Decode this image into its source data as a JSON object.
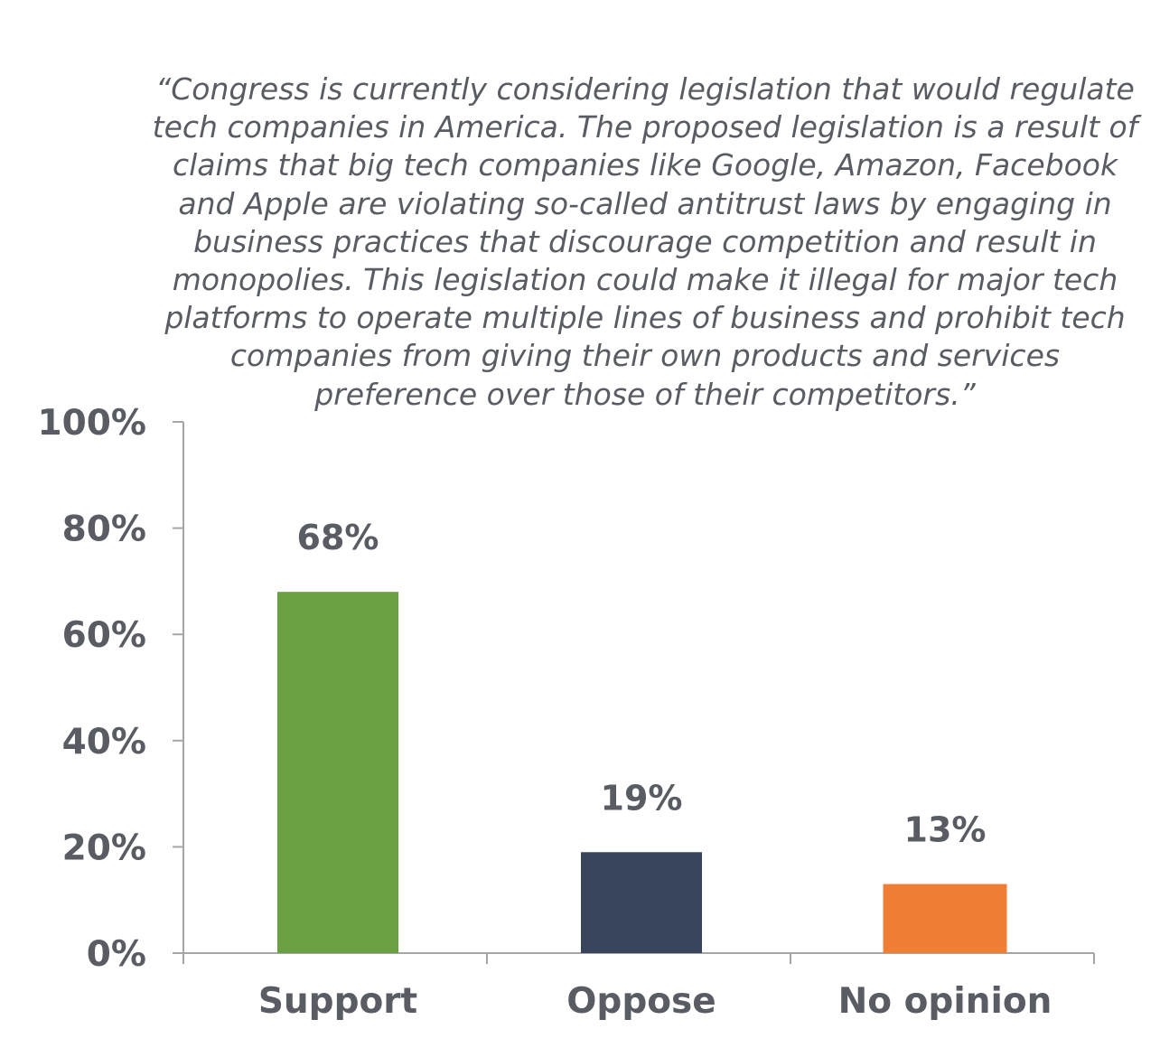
{
  "chart_data": {
    "type": "bar",
    "title": "“Congress is currently considering legislation that would regulate tech companies in America. The proposed legislation is a result of claims that big tech companies like Google, Amazon, Facebook and Apple are violating so-called antitrust laws by engaging in business practices that discourage competition and result in monopolies. This legislation could make it illegal for major tech platforms to operate multiple lines of business and prohibit tech companies from giving their own products and services preference over those of their competitors.”",
    "categories": [
      "Support",
      "Oppose",
      "No opinion"
    ],
    "values": [
      68,
      19,
      13
    ],
    "value_labels": [
      "68%",
      "19%",
      "13%"
    ],
    "colors": [
      "#6aa042",
      "#37445b",
      "#f07e35"
    ],
    "ylim": [
      0,
      100
    ],
    "ytick_values": [
      0,
      20,
      40,
      60,
      80,
      100
    ],
    "yticks": [
      "0%",
      "20%",
      "40%",
      "60%",
      "80%",
      "100%"
    ],
    "xlabel": "",
    "ylabel": "",
    "grid": false,
    "legend": "none",
    "text_color": "#595d63",
    "axis_color": "#a6a6a6"
  }
}
